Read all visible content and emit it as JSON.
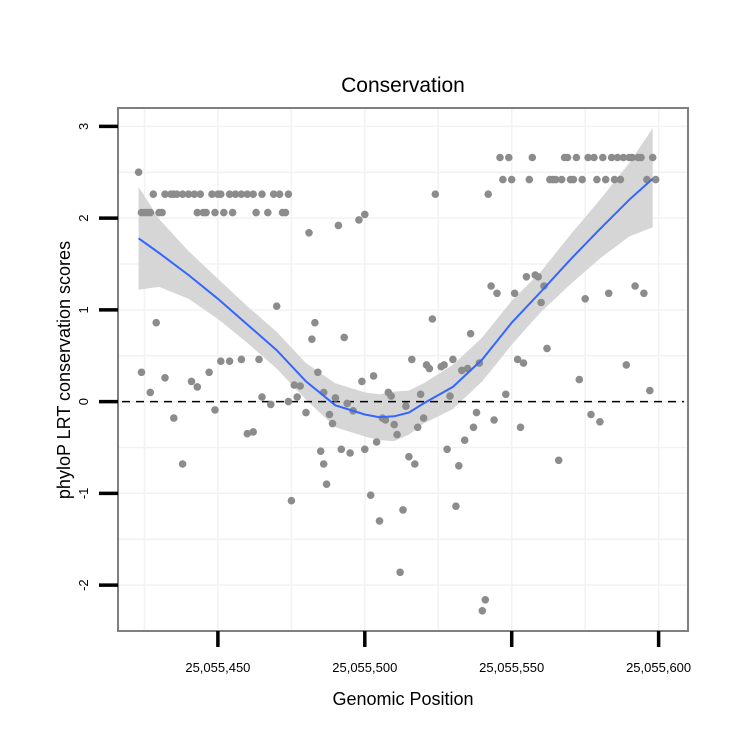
{
  "chart_data": {
    "type": "scatter",
    "title": "Conservation",
    "xlabel": "Genomic Position",
    "ylabel": "phyloP LRT conservation scores",
    "xlim": [
      25055416,
      25055610
    ],
    "ylim": [
      -2.5,
      3.2
    ],
    "x_ticks": [
      25055450,
      25055500,
      25055550,
      25055600
    ],
    "x_tick_labels": [
      "25,055,450",
      "25,055,500",
      "25,055,550",
      "25,055,600"
    ],
    "y_ticks": [
      -2,
      -1,
      0,
      1,
      2,
      3
    ],
    "y_tick_labels": [
      "-2",
      "-1",
      "0",
      "1",
      "2",
      "3"
    ],
    "reference_line_y": 0,
    "colors": {
      "points": "#8c8c8c",
      "smooth": "#3366ff",
      "ribbon": "#d6d6d6",
      "reference": "#000000",
      "grid": "#f2f2f2",
      "frame": "#7f7f7f"
    },
    "points": [
      [
        25055423,
        2.5
      ],
      [
        25055424,
        2.06
      ],
      [
        25055425,
        2.06
      ],
      [
        25055426,
        2.06
      ],
      [
        25055427,
        2.06
      ],
      [
        25055428,
        2.26
      ],
      [
        25055430,
        2.06
      ],
      [
        25055431,
        2.06
      ],
      [
        25055432,
        2.26
      ],
      [
        25055434,
        2.26
      ],
      [
        25055435,
        2.26
      ],
      [
        25055436,
        2.26
      ],
      [
        25055438,
        2.26
      ],
      [
        25055440,
        2.26
      ],
      [
        25055442,
        2.26
      ],
      [
        25055443,
        2.06
      ],
      [
        25055444,
        2.26
      ],
      [
        25055445,
        2.06
      ],
      [
        25055446,
        2.06
      ],
      [
        25055448,
        2.26
      ],
      [
        25055449,
        2.06
      ],
      [
        25055450,
        2.26
      ],
      [
        25055451,
        2.26
      ],
      [
        25055452,
        2.06
      ],
      [
        25055454,
        2.26
      ],
      [
        25055455,
        2.06
      ],
      [
        25055456,
        2.26
      ],
      [
        25055458,
        2.26
      ],
      [
        25055460,
        2.26
      ],
      [
        25055462,
        2.26
      ],
      [
        25055463,
        2.06
      ],
      [
        25055465,
        2.26
      ],
      [
        25055467,
        2.06
      ],
      [
        25055469,
        2.26
      ],
      [
        25055471,
        2.26
      ],
      [
        25055472,
        2.06
      ],
      [
        25055473,
        2.06
      ],
      [
        25055474,
        2.26
      ],
      [
        25055424,
        0.32
      ],
      [
        25055427,
        0.1
      ],
      [
        25055429,
        0.86
      ],
      [
        25055432,
        0.26
      ],
      [
        25055435,
        -0.18
      ],
      [
        25055438,
        -0.68
      ],
      [
        25055441,
        0.22
      ],
      [
        25055443,
        0.16
      ],
      [
        25055447,
        0.32
      ],
      [
        25055449,
        -0.09
      ],
      [
        25055451,
        0.44
      ],
      [
        25055454,
        0.44
      ],
      [
        25055458,
        0.46
      ],
      [
        25055460,
        -0.35
      ],
      [
        25055462,
        -0.33
      ],
      [
        25055464,
        0.46
      ],
      [
        25055465,
        0.05
      ],
      [
        25055468,
        -0.03
      ],
      [
        25055470,
        1.04
      ],
      [
        25055474,
        0.0
      ],
      [
        25055475,
        -1.08
      ],
      [
        25055476,
        0.18
      ],
      [
        25055477,
        0.05
      ],
      [
        25055478,
        0.17
      ],
      [
        25055480,
        -0.12
      ],
      [
        25055481,
        1.84
      ],
      [
        25055482,
        0.68
      ],
      [
        25055483,
        0.86
      ],
      [
        25055484,
        0.32
      ],
      [
        25055485,
        -0.54
      ],
      [
        25055486,
        0.1
      ],
      [
        25055486,
        -0.68
      ],
      [
        25055487,
        -0.9
      ],
      [
        25055488,
        -0.14
      ],
      [
        25055489,
        -0.24
      ],
      [
        25055490,
        0.04
      ],
      [
        25055491,
        1.92
      ],
      [
        25055492,
        -0.52
      ],
      [
        25055493,
        0.7
      ],
      [
        25055494,
        -0.02
      ],
      [
        25055495,
        -0.56
      ],
      [
        25055496,
        -0.1
      ],
      [
        25055498,
        1.98
      ],
      [
        25055499,
        0.22
      ],
      [
        25055500,
        -0.52
      ],
      [
        25055500,
        2.04
      ],
      [
        25055502,
        -1.02
      ],
      [
        25055503,
        0.28
      ],
      [
        25055504,
        -0.44
      ],
      [
        25055505,
        -1.3
      ],
      [
        25055506,
        -0.18
      ],
      [
        25055507,
        -0.2
      ],
      [
        25055508,
        0.1
      ],
      [
        25055509,
        0.06
      ],
      [
        25055510,
        -0.25
      ],
      [
        25055511,
        -0.36
      ],
      [
        25055512,
        -1.86
      ],
      [
        25055513,
        -1.18
      ],
      [
        25055514,
        -0.05
      ],
      [
        25055515,
        -0.6
      ],
      [
        25055516,
        0.46
      ],
      [
        25055517,
        -0.68
      ],
      [
        25055518,
        -0.28
      ],
      [
        25055519,
        0.08
      ],
      [
        25055520,
        -0.18
      ],
      [
        25055521,
        0.4
      ],
      [
        25055522,
        0.36
      ],
      [
        25055523,
        0.9
      ],
      [
        25055524,
        2.26
      ],
      [
        25055526,
        0.38
      ],
      [
        25055527,
        0.4
      ],
      [
        25055528,
        -0.52
      ],
      [
        25055529,
        0.06
      ],
      [
        25055530,
        0.46
      ],
      [
        25055531,
        -1.14
      ],
      [
        25055532,
        -0.7
      ],
      [
        25055533,
        0.34
      ],
      [
        25055534,
        -0.42
      ],
      [
        25055535,
        0.36
      ],
      [
        25055536,
        0.74
      ],
      [
        25055537,
        -0.28
      ],
      [
        25055538,
        -0.12
      ],
      [
        25055539,
        0.42
      ],
      [
        25055540,
        -2.28
      ],
      [
        25055541,
        -2.16
      ],
      [
        25055542,
        2.26
      ],
      [
        25055543,
        1.26
      ],
      [
        25055544,
        -0.2
      ],
      [
        25055545,
        1.18
      ],
      [
        25055546,
        2.66
      ],
      [
        25055547,
        2.42
      ],
      [
        25055548,
        0.08
      ],
      [
        25055549,
        2.66
      ],
      [
        25055550,
        2.42
      ],
      [
        25055551,
        1.18
      ],
      [
        25055552,
        0.46
      ],
      [
        25055553,
        -0.28
      ],
      [
        25055554,
        0.42
      ],
      [
        25055555,
        1.36
      ],
      [
        25055556,
        2.42
      ],
      [
        25055557,
        2.66
      ],
      [
        25055558,
        1.38
      ],
      [
        25055559,
        1.36
      ],
      [
        25055560,
        1.08
      ],
      [
        25055561,
        1.26
      ],
      [
        25055562,
        0.58
      ],
      [
        25055563,
        2.42
      ],
      [
        25055564,
        2.42
      ],
      [
        25055565,
        2.42
      ],
      [
        25055566,
        -0.64
      ],
      [
        25055567,
        2.42
      ],
      [
        25055568,
        2.66
      ],
      [
        25055569,
        2.66
      ],
      [
        25055570,
        2.42
      ],
      [
        25055571,
        2.42
      ],
      [
        25055572,
        2.66
      ],
      [
        25055573,
        0.24
      ],
      [
        25055574,
        2.42
      ],
      [
        25055575,
        1.12
      ],
      [
        25055576,
        2.66
      ],
      [
        25055577,
        -0.14
      ],
      [
        25055578,
        2.66
      ],
      [
        25055579,
        2.42
      ],
      [
        25055580,
        -0.22
      ],
      [
        25055581,
        2.66
      ],
      [
        25055582,
        2.42
      ],
      [
        25055583,
        1.18
      ],
      [
        25055584,
        2.66
      ],
      [
        25055585,
        2.42
      ],
      [
        25055586,
        2.66
      ],
      [
        25055587,
        2.42
      ],
      [
        25055588,
        2.66
      ],
      [
        25055589,
        0.4
      ],
      [
        25055590,
        2.66
      ],
      [
        25055591,
        2.66
      ],
      [
        25055592,
        1.26
      ],
      [
        25055593,
        2.66
      ],
      [
        25055594,
        2.66
      ],
      [
        25055595,
        1.18
      ],
      [
        25055596,
        2.42
      ],
      [
        25055597,
        0.12
      ],
      [
        25055598,
        2.66
      ],
      [
        25055599,
        2.42
      ]
    ],
    "smooth": {
      "x": [
        25055423,
        25055430,
        25055440,
        25055450,
        25055460,
        25055470,
        25055480,
        25055490,
        25055500,
        25055505,
        25055510,
        25055515,
        25055520,
        25055530,
        25055540,
        25055550,
        25055560,
        25055570,
        25055580,
        25055590,
        25055598
      ],
      "y": [
        1.78,
        1.62,
        1.38,
        1.12,
        0.84,
        0.56,
        0.22,
        -0.04,
        -0.14,
        -0.17,
        -0.16,
        -0.12,
        -0.02,
        0.16,
        0.46,
        0.86,
        1.2,
        1.55,
        1.88,
        2.2,
        2.43
      ],
      "lower": [
        1.22,
        1.25,
        1.12,
        0.9,
        0.64,
        0.36,
        0.02,
        -0.28,
        -0.38,
        -0.42,
        -0.43,
        -0.36,
        -0.24,
        -0.08,
        0.22,
        0.62,
        0.98,
        1.28,
        1.56,
        1.8,
        1.9
      ],
      "upper": [
        2.34,
        1.99,
        1.64,
        1.34,
        1.04,
        0.76,
        0.42,
        0.2,
        0.1,
        0.08,
        0.11,
        0.12,
        0.2,
        0.4,
        0.7,
        1.1,
        1.42,
        1.82,
        2.2,
        2.6,
        2.98
      ]
    }
  }
}
